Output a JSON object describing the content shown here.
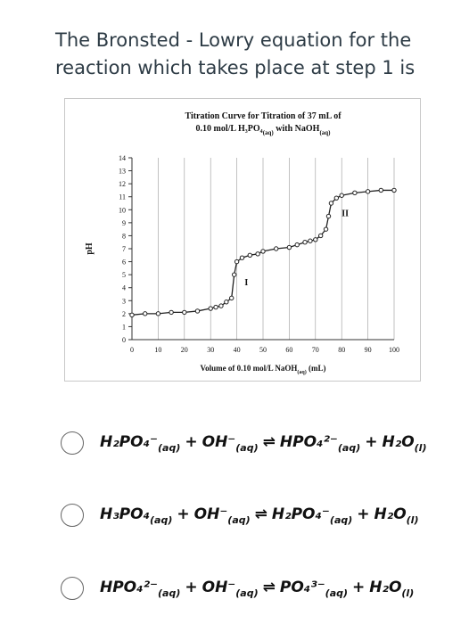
{
  "question": {
    "lines": [
      "The Bronsted - Lowry equation for the",
      "reaction which takes place at step 1 is"
    ]
  },
  "chart_data": {
    "type": "line",
    "title": [
      "Titration Curve for Titration of 37 mL of",
      [
        "0.10 mol/L",
        {
          "formula": "H₃PO₄",
          "state": "(aq)"
        },
        "with",
        {
          "formula": "NaOH",
          "state": "(aq)"
        }
      ]
    ],
    "x_label": [
      "Volume of 0.10 mol/L",
      {
        "formula": "NaOH",
        "state": "(aq)"
      },
      "(mL)"
    ],
    "y_label": "pH",
    "x": [
      0,
      5,
      10,
      15,
      20,
      25,
      30,
      32,
      34,
      36,
      38,
      39,
      40,
      42,
      45,
      48,
      50,
      55,
      60,
      63,
      66,
      68,
      70,
      72,
      74,
      75,
      76,
      78,
      80,
      85,
      90,
      95,
      100
    ],
    "values": [
      1.9,
      2.0,
      2.0,
      2.1,
      2.1,
      2.2,
      2.4,
      2.5,
      2.6,
      2.9,
      3.2,
      5.0,
      6.0,
      6.3,
      6.5,
      6.6,
      6.8,
      7.0,
      7.1,
      7.3,
      7.5,
      7.6,
      7.7,
      8.0,
      8.5,
      9.5,
      10.5,
      10.9,
      11.1,
      11.3,
      11.4,
      11.5,
      11.5
    ],
    "color": "#222222",
    "xlim": [
      0,
      100
    ],
    "xticks": [
      0,
      10,
      20,
      30,
      40,
      50,
      60,
      70,
      80,
      90,
      100
    ],
    "ylim": [
      0,
      14
    ],
    "yticks": [
      0,
      1,
      2,
      3,
      4,
      5,
      6,
      7,
      8,
      9,
      10,
      11,
      12,
      13,
      14
    ],
    "grid": true,
    "annotations": [
      "I",
      "II"
    ]
  },
  "options": [
    [
      {
        "formula": "H₂PO₄⁻",
        "state": "(aq)"
      },
      "+",
      {
        "formula": "OH⁻",
        "state": "(aq)"
      },
      "⇌",
      {
        "formula": "HPO₄²⁻",
        "state": "(aq)"
      },
      "+",
      {
        "formula": "H₂O",
        "state": "(l)"
      }
    ],
    [
      {
        "formula": "H₃PO₄",
        "state": "(aq)"
      },
      "+",
      {
        "formula": "OH⁻",
        "state": "(aq)"
      },
      "⇌",
      {
        "formula": "H₂PO₄⁻",
        "state": "(aq)"
      },
      "+",
      {
        "formula": "H₂O",
        "state": "(l)"
      }
    ],
    [
      {
        "formula": "HPO₄²⁻",
        "state": "(aq)"
      },
      "+",
      {
        "formula": "OH⁻",
        "state": "(aq)"
      },
      "⇌",
      {
        "formula": "PO₄³⁻",
        "state": "(aq)"
      },
      "+",
      {
        "formula": "H₂O",
        "state": "(l)"
      }
    ]
  ]
}
